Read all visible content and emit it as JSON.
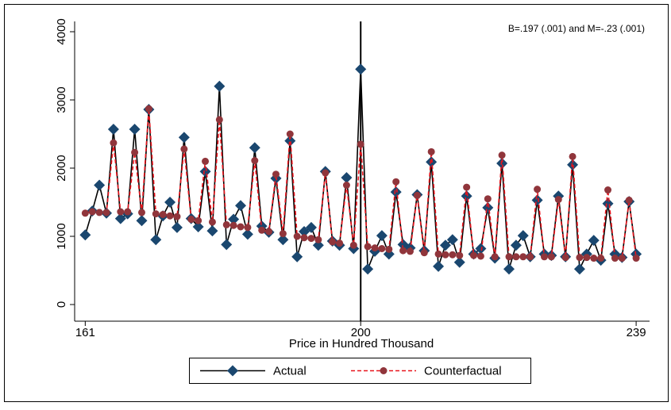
{
  "chart_data": {
    "type": "line",
    "annotation": "B=.197 (.001) and M=-.23 (.001)",
    "xlabel": "Price in Hundred Thousand",
    "x": [
      161,
      162,
      163,
      164,
      165,
      166,
      167,
      168,
      169,
      170,
      171,
      172,
      173,
      174,
      175,
      176,
      177,
      178,
      179,
      180,
      181,
      182,
      183,
      184,
      185,
      186,
      187,
      188,
      189,
      190,
      191,
      192,
      193,
      194,
      195,
      196,
      197,
      198,
      199,
      200,
      201,
      202,
      203,
      204,
      205,
      206,
      207,
      208,
      209,
      210,
      211,
      212,
      213,
      214,
      215,
      216,
      217,
      218,
      219,
      220,
      221,
      222,
      223,
      224,
      225,
      226,
      227,
      228,
      229,
      230,
      231,
      232,
      233,
      234,
      235,
      236,
      237,
      238,
      239
    ],
    "series": [
      {
        "name": "Actual",
        "color": "#1a476f",
        "line_color": "#000000",
        "dashed": false,
        "marker": "diamond",
        "values": [
          1020,
          1370,
          1750,
          1340,
          2570,
          1260,
          1330,
          2570,
          1230,
          2860,
          950,
          1300,
          1500,
          1130,
          2450,
          1260,
          1140,
          1950,
          1080,
          3200,
          880,
          1250,
          1450,
          1030,
          2300,
          1150,
          1060,
          1850,
          950,
          2400,
          700,
          1070,
          1130,
          870,
          1950,
          930,
          870,
          1860,
          820,
          3450,
          520,
          780,
          1010,
          740,
          1650,
          880,
          830,
          1610,
          790,
          2090,
          560,
          870,
          950,
          620,
          1590,
          740,
          820,
          1420,
          680,
          2070,
          520,
          870,
          1010,
          700,
          1530,
          740,
          720,
          1590,
          700,
          2050,
          520,
          740,
          940,
          650,
          1480,
          740,
          690,
          1510,
          740
        ]
      },
      {
        "name": "Counterfactual",
        "color": "#90353b",
        "line_color": "#e8141c",
        "dashed": true,
        "marker": "circle",
        "values": [
          1340,
          1360,
          1350,
          1350,
          2370,
          1360,
          1360,
          2230,
          1350,
          2870,
          1330,
          1320,
          1300,
          1290,
          2280,
          1250,
          1230,
          2100,
          1210,
          2710,
          1170,
          1160,
          1140,
          1130,
          2110,
          1090,
          1070,
          1910,
          1040,
          2500,
          1000,
          980,
          970,
          950,
          1930,
          920,
          900,
          1750,
          870,
          2350,
          850,
          830,
          820,
          810,
          1800,
          790,
          780,
          1600,
          760,
          2240,
          740,
          730,
          730,
          720,
          1720,
          720,
          710,
          1550,
          700,
          2190,
          700,
          700,
          700,
          700,
          1690,
          700,
          700,
          1540,
          690,
          2170,
          690,
          690,
          680,
          680,
          1680,
          680,
          680,
          1530,
          680
        ]
      }
    ],
    "vline": 200,
    "xlim": [
      159.5,
      240.9
    ],
    "xticks": [
      161,
      200,
      239
    ],
    "ylim": [
      -244,
      4151
    ],
    "yticks": [
      0,
      1000,
      2000,
      3000,
      4000
    ],
    "grid": false
  }
}
